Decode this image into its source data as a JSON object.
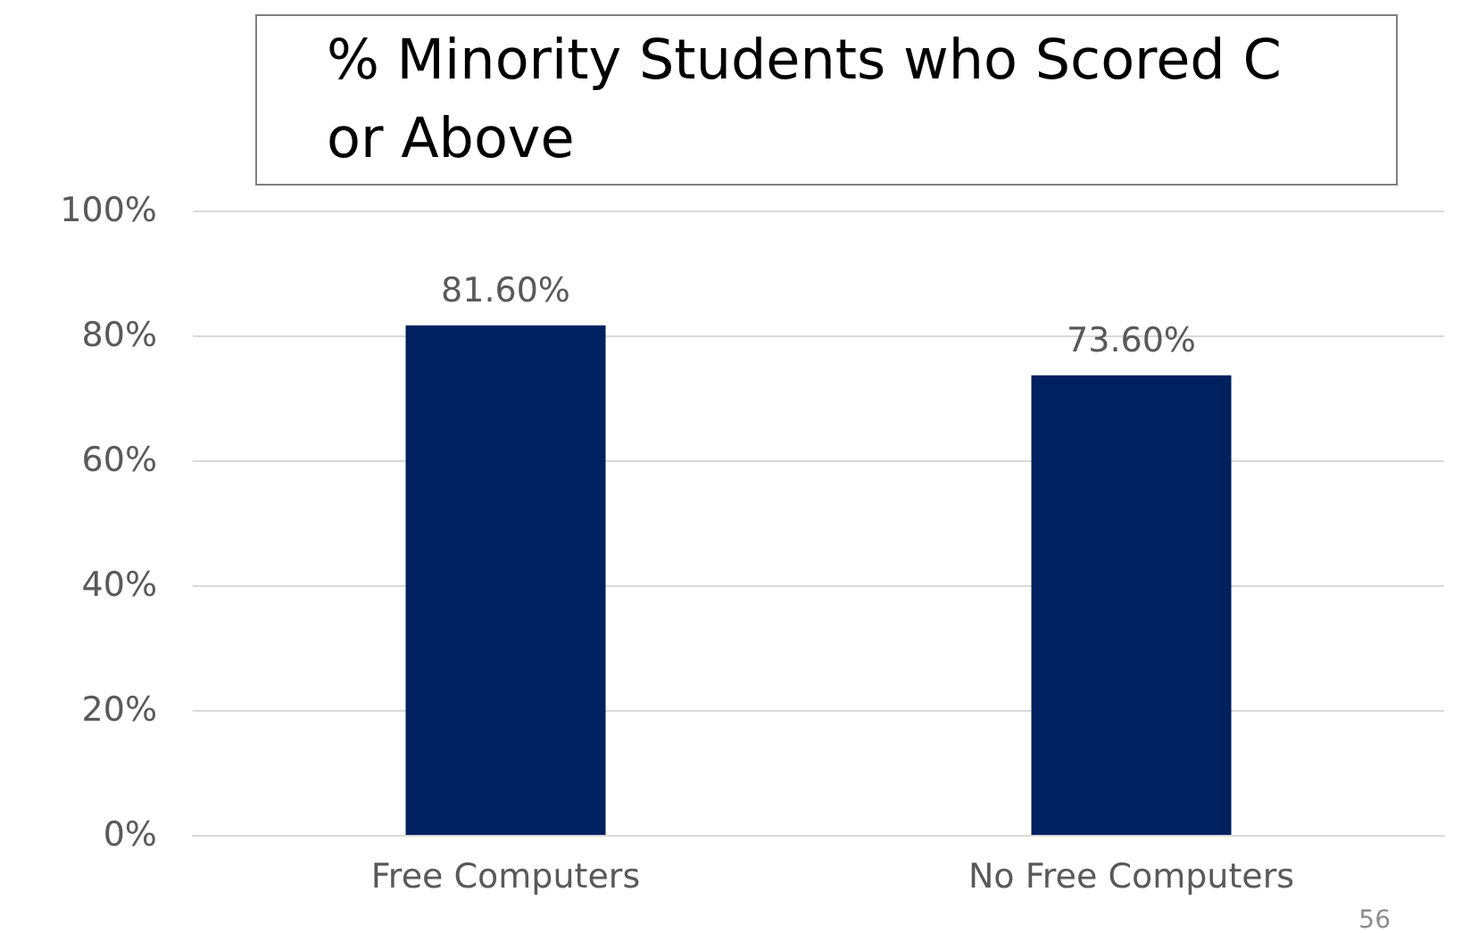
{
  "chart_data": {
    "type": "bar",
    "title": "% Minority Students who Scored C or Above",
    "categories": [
      "Free Computers",
      "No Free Computers"
    ],
    "values": [
      81.6,
      73.6
    ],
    "value_labels": [
      "81.60%",
      "73.60%"
    ],
    "color": "#002060",
    "ylim": [
      0,
      100
    ],
    "yticks": [
      {
        "value": 0,
        "label": "0%"
      },
      {
        "value": 20,
        "label": "20%"
      },
      {
        "value": 40,
        "label": "40%"
      },
      {
        "value": 60,
        "label": "60%"
      },
      {
        "value": 80,
        "label": "80%"
      },
      {
        "value": 100,
        "label": "100%"
      }
    ],
    "grid": "y",
    "annotations": [
      "56"
    ]
  }
}
